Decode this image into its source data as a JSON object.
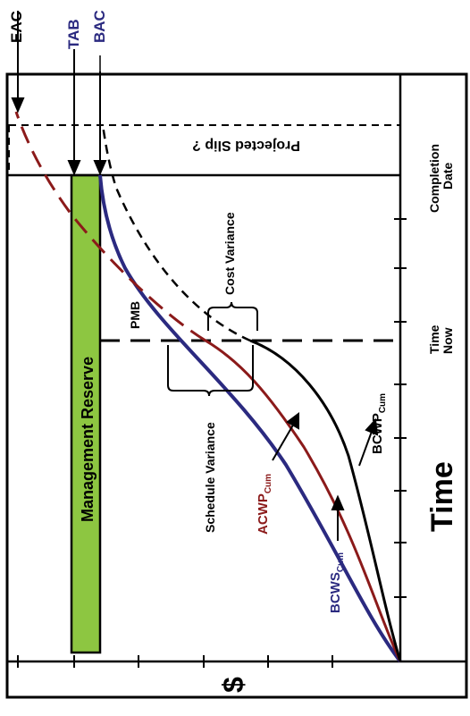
{
  "labels": {
    "eac": "EAC",
    "tab": "TAB",
    "bac": "BAC",
    "management_reserve": "Management Reserve",
    "projected_slip": "Projected Slip ?",
    "completion_date_line1": "Completion",
    "completion_date_line2": "Date",
    "time_now_line1": "Time",
    "time_now_line2": "Now",
    "time_axis": "Time",
    "dollar_axis": "$",
    "pmb": "PMB",
    "cost_variance": "Cost Variance",
    "schedule_variance": "Schedule Variance",
    "acwp_main": "ACWP",
    "acwp_sub": "Cum",
    "bcwp_main": "BCWP",
    "bcwp_sub": "Cum",
    "bcws_main": "BCWS",
    "bcws_sub": "Cum"
  },
  "colors": {
    "bcws": "#2b2a80",
    "acwp": "#8b1a1a",
    "bcwp": "#000000",
    "management_reserve": "#8dc641",
    "acwp_label": "#8b1a1a",
    "bcws_label": "#2b2a80",
    "header_label": "#2b2a80"
  }
}
